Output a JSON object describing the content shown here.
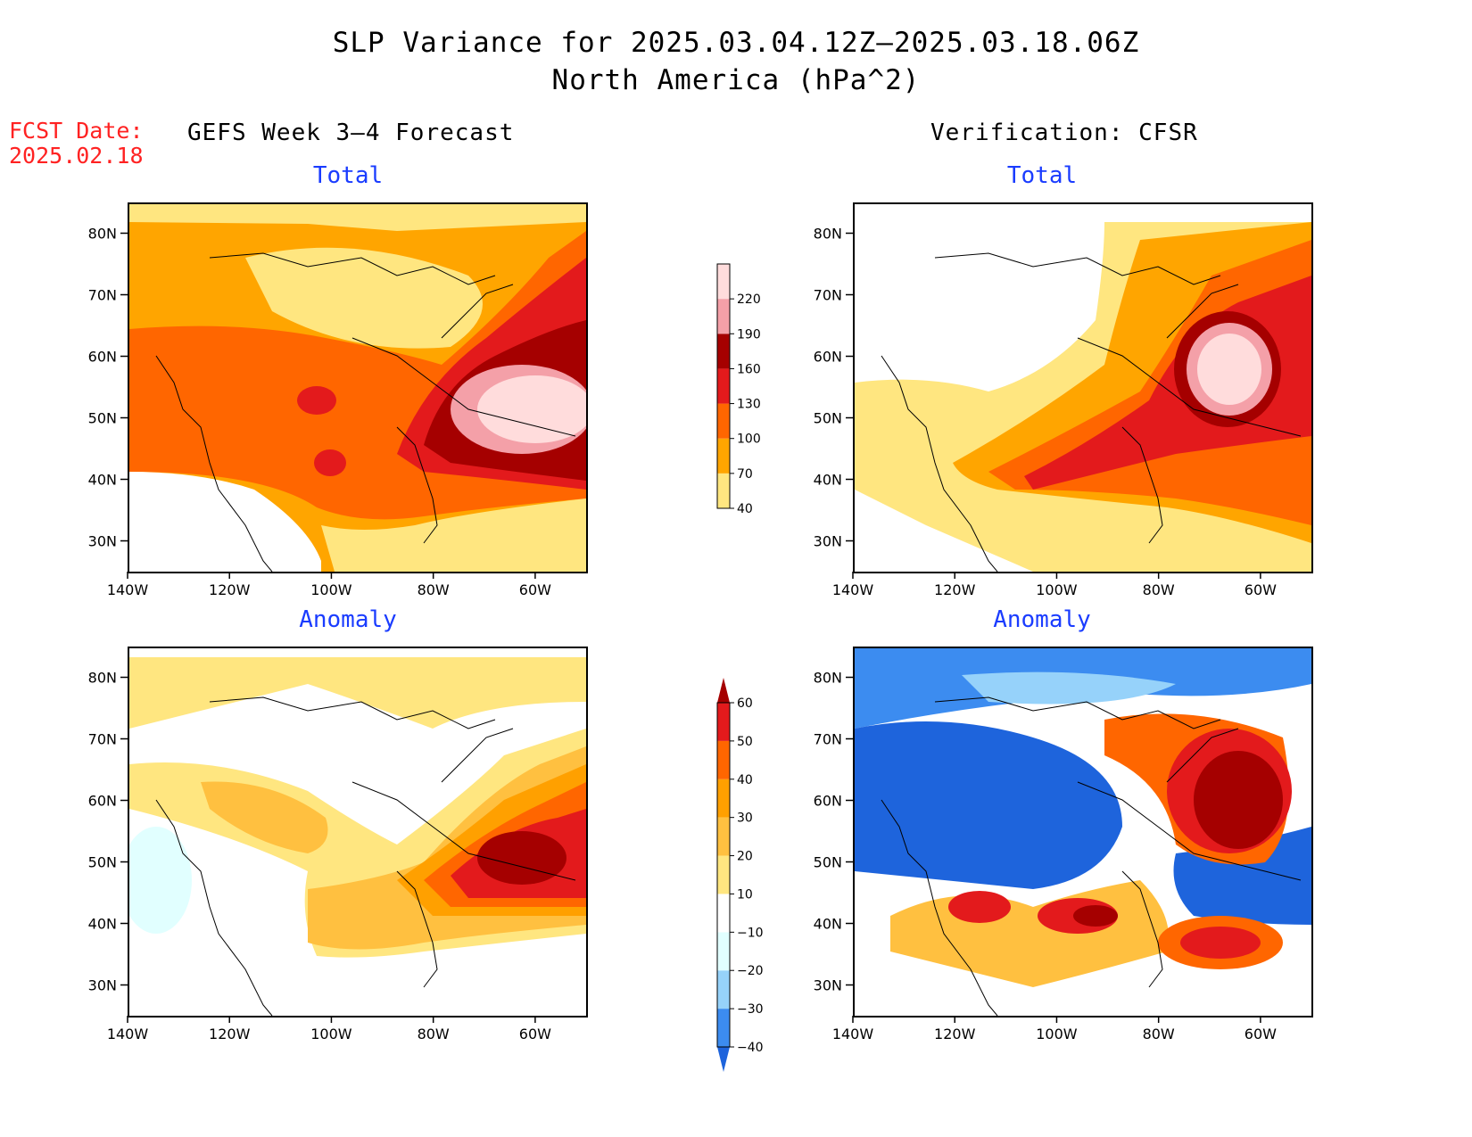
{
  "figure": {
    "title_line1": "SLP Variance for 2025.03.04.12Z–2025.03.18.06Z",
    "title_line2": "North America (hPa^2)",
    "fcst_label": "FCST Date:",
    "fcst_date": "2025.02.18",
    "left_column_title": "GEFS Week 3–4 Forecast",
    "right_column_title": "Verification: CFSR"
  },
  "panels": [
    {
      "id": "forecast-total",
      "title": "Total"
    },
    {
      "id": "verification-total",
      "title": "Total"
    },
    {
      "id": "forecast-anomaly",
      "title": "Anomaly"
    },
    {
      "id": "verification-anomaly",
      "title": "Anomaly"
    }
  ],
  "axes": {
    "lat_ticks": [
      "80N",
      "70N",
      "60N",
      "50N",
      "40N",
      "30N"
    ],
    "lon_ticks": [
      "140W",
      "120W",
      "100W",
      "80W",
      "60W"
    ],
    "lat_values": [
      80,
      70,
      60,
      50,
      40,
      30
    ],
    "lon_values": [
      -140,
      -120,
      -100,
      -80,
      -60
    ],
    "lat_range": [
      25,
      85
    ],
    "lon_range": [
      -140,
      -50
    ]
  },
  "colorbars": {
    "total": {
      "levels": [
        "40",
        "70",
        "100",
        "130",
        "160",
        "190",
        "220"
      ],
      "colors": [
        "#ffe680",
        "#ffa500",
        "#ff6600",
        "#e31a1c",
        "#a50000",
        "#f4a0a8",
        "#ffdcdc"
      ]
    },
    "anomaly": {
      "levels": [
        "−40",
        "−30",
        "−20",
        "−10",
        "10",
        "20",
        "30",
        "40",
        "50",
        "60"
      ],
      "colors": [
        "#1e64dc",
        "#3c8cf0",
        "#96d2fa",
        "#e1ffff",
        "#ffffff",
        "#ffe680",
        "#ffc040",
        "#ffa000",
        "#ff6600",
        "#e31a1c",
        "#a50000"
      ]
    }
  },
  "palette": {
    "yellow": "#ffe680",
    "light_orange": "#ffa500",
    "orange": "#ff6600",
    "red": "#e31a1c",
    "dark_red": "#a50000",
    "pink": "#f4a0a8",
    "pale_pink": "#ffdcdc",
    "blue": "#1e64dc",
    "mid_blue": "#3c8cf0",
    "light_blue": "#96d2fa",
    "pale_cyan": "#e1ffff"
  }
}
